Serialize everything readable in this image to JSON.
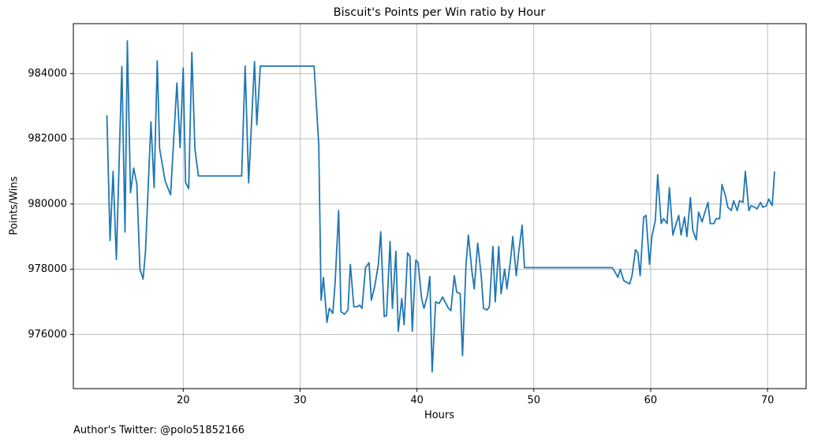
{
  "chart_data": {
    "type": "line",
    "title": "Biscuit's Points per Win ratio by Hour",
    "x_label": "Hours",
    "y_label": "Points/Wins",
    "footnote": "Author's Twitter: @polo51852166",
    "x": [
      13.47,
      13.74,
      14.0,
      14.28,
      14.75,
      15.02,
      15.22,
      15.49,
      15.76,
      16.03,
      16.3,
      16.57,
      16.77,
      17.24,
      17.51,
      17.78,
      17.98,
      18.45,
      18.92,
      19.46,
      19.73,
      20.0,
      20.2,
      20.47,
      20.74,
      21.0,
      21.3,
      25.0,
      25.3,
      25.6,
      26.1,
      26.3,
      26.6,
      31.2,
      31.6,
      31.8,
      32.0,
      32.3,
      32.5,
      32.8,
      33.0,
      33.3,
      33.5,
      33.8,
      34.1,
      34.3,
      34.6,
      34.9,
      35.1,
      35.3,
      35.6,
      35.9,
      36.1,
      36.4,
      36.7,
      36.9,
      37.2,
      37.4,
      37.7,
      37.9,
      38.2,
      38.4,
      38.7,
      38.9,
      39.2,
      39.4,
      39.6,
      39.9,
      40.1,
      40.4,
      40.6,
      40.9,
      41.1,
      41.3,
      41.6,
      41.9,
      42.2,
      42.4,
      42.7,
      42.9,
      43.2,
      43.4,
      43.7,
      43.9,
      44.2,
      44.4,
      44.7,
      44.9,
      45.2,
      45.5,
      45.7,
      46.0,
      46.2,
      46.5,
      46.7,
      47.0,
      47.2,
      47.5,
      47.7,
      48.0,
      48.2,
      48.5,
      48.7,
      49.0,
      49.2,
      56.7,
      56.9,
      57.2,
      57.4,
      57.7,
      58.2,
      58.4,
      58.7,
      58.9,
      59.1,
      59.4,
      59.6,
      59.9,
      60.1,
      60.4,
      60.6,
      60.9,
      61.1,
      61.4,
      61.6,
      61.9,
      62.1,
      62.4,
      62.6,
      62.9,
      63.1,
      63.4,
      63.6,
      63.9,
      64.1,
      64.4,
      64.6,
      64.9,
      65.1,
      65.4,
      65.6,
      65.9,
      66.1,
      66.4,
      66.6,
      66.9,
      67.1,
      67.4,
      67.6,
      67.9,
      68.1,
      68.4,
      68.6,
      68.9,
      69.1,
      69.4,
      69.6,
      69.9,
      70.1,
      70.4,
      70.6
    ],
    "series": [
      {
        "name": "Points/Wins",
        "color": "#1f77b4",
        "values": [
          982720,
          978880,
          981000,
          978300,
          984220,
          979140,
          985000,
          980350,
          981100,
          980620,
          978000,
          977700,
          978540,
          982520,
          980500,
          984390,
          981700,
          980710,
          980280,
          983710,
          981730,
          984170,
          980660,
          980470,
          984650,
          981700,
          980860,
          980860,
          984230,
          980650,
          984370,
          982430,
          984230,
          984230,
          981800,
          977050,
          977750,
          976370,
          976800,
          976650,
          977600,
          979800,
          976700,
          976620,
          976750,
          978150,
          976850,
          976850,
          976900,
          976800,
          978050,
          978200,
          977050,
          977500,
          978150,
          979150,
          976550,
          976580,
          978850,
          976800,
          978550,
          976100,
          977100,
          976300,
          978500,
          978400,
          976100,
          978280,
          978200,
          977100,
          976800,
          977200,
          977780,
          974850,
          977000,
          976950,
          977150,
          977000,
          976800,
          976730,
          977800,
          977300,
          977250,
          975350,
          978150,
          979050,
          977950,
          977400,
          978800,
          977800,
          976800,
          976750,
          976850,
          978700,
          977000,
          978700,
          977250,
          978000,
          977400,
          978250,
          979000,
          977800,
          978500,
          979350,
          978050,
          978050,
          977950,
          977750,
          978000,
          977650,
          977550,
          977800,
          978600,
          978500,
          977800,
          979600,
          979650,
          978150,
          979000,
          979500,
          980900,
          979400,
          979550,
          979400,
          980500,
          979050,
          979300,
          979650,
          979050,
          979600,
          979000,
          980200,
          979200,
          978900,
          979750,
          979450,
          979700,
          980050,
          979400,
          979400,
          979550,
          979550,
          980600,
          980250,
          979900,
          979800,
          980100,
          979800,
          980100,
          980050,
          981000,
          979800,
          979950,
          979900,
          979850,
          980050,
          979900,
          979950,
          980150,
          979950,
          981000
        ]
      }
    ],
    "xlim": [
      10.6,
      73.3
    ],
    "xticks": [
      20,
      30,
      40,
      50,
      60,
      70
    ],
    "ylim": [
      974340,
      985530
    ],
    "yticks": [
      976000,
      978000,
      980000,
      982000,
      984000
    ],
    "grid": true
  }
}
